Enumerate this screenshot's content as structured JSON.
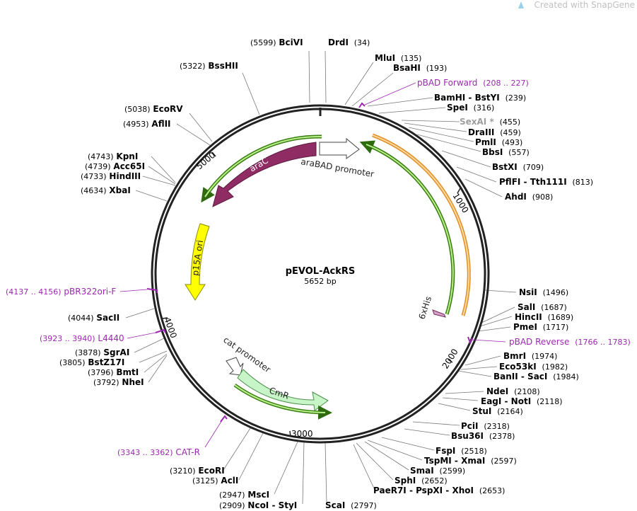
{
  "watermark": "Created with SnapGene",
  "plasmid": {
    "name": "pEVOL-AckRS",
    "length": "5652 bp"
  },
  "ticks": [
    "1000",
    "2000",
    "3000",
    "4000",
    "5000"
  ],
  "features": {
    "araC": "araC",
    "araBAD": "araBAD promoter",
    "p15A": "p15A ori",
    "cat": "cat promoter",
    "cmr": "CmR",
    "his": "6xHis"
  },
  "sites": [
    {
      "pos": "(5599)",
      "name": "BciVI"
    },
    {
      "pos": "(34)",
      "name": "DrdI"
    },
    {
      "pos": "(135)",
      "name": "MluI"
    },
    {
      "pos": "(193)",
      "name": "BsaHI"
    },
    {
      "pos": "(5322)",
      "name": "BssHII"
    },
    {
      "pos": "(239)",
      "name": "BamHI - BstYI"
    },
    {
      "pos": "(316)",
      "name": "SpeI"
    },
    {
      "pos": "(455)",
      "name": "SexAI *"
    },
    {
      "pos": "(459)",
      "name": "DraIII"
    },
    {
      "pos": "(493)",
      "name": "PmlI"
    },
    {
      "pos": "(557)",
      "name": "BbsI"
    },
    {
      "pos": "(5038)",
      "name": "EcoRV"
    },
    {
      "pos": "(4953)",
      "name": "AflII"
    },
    {
      "pos": "(709)",
      "name": "BstXI"
    },
    {
      "pos": "(4743)",
      "name": "KpnI"
    },
    {
      "pos": "(4739)",
      "name": "Acc65I"
    },
    {
      "pos": "(4733)",
      "name": "HindIII"
    },
    {
      "pos": "(813)",
      "name": "PflFI - Tth111I"
    },
    {
      "pos": "(4634)",
      "name": "XbaI"
    },
    {
      "pos": "(908)",
      "name": "AhdI"
    },
    {
      "pos": "(1496)",
      "name": "NsiI"
    },
    {
      "pos": "(4044)",
      "name": "SacII"
    },
    {
      "pos": "(1687)",
      "name": "SalI"
    },
    {
      "pos": "(1689)",
      "name": "HincII"
    },
    {
      "pos": "(1717)",
      "name": "PmeI"
    },
    {
      "pos": "(3878)",
      "name": "SgrAI"
    },
    {
      "pos": "(3805)",
      "name": "BstZ17I"
    },
    {
      "pos": "(3796)",
      "name": "BmtI"
    },
    {
      "pos": "(3792)",
      "name": "NheI"
    },
    {
      "pos": "(1974)",
      "name": "BmrI"
    },
    {
      "pos": "(1982)",
      "name": "Eco53kI"
    },
    {
      "pos": "(1984)",
      "name": "BanII - SacI"
    },
    {
      "pos": "(2108)",
      "name": "NdeI"
    },
    {
      "pos": "(2118)",
      "name": "EagI - NotI"
    },
    {
      "pos": "(2164)",
      "name": "StuI"
    },
    {
      "pos": "(2318)",
      "name": "PciI"
    },
    {
      "pos": "(2378)",
      "name": "Bsu36I"
    },
    {
      "pos": "(2518)",
      "name": "FspI"
    },
    {
      "pos": "(2597)",
      "name": "TspMI - XmaI"
    },
    {
      "pos": "(2599)",
      "name": "SmaI"
    },
    {
      "pos": "(2652)",
      "name": "SphI"
    },
    {
      "pos": "(2653)",
      "name": "PaeR7I - PspXI - XhoI"
    },
    {
      "pos": "(3210)",
      "name": "EcoRI"
    },
    {
      "pos": "(3125)",
      "name": "AclI"
    },
    {
      "pos": "(2947)",
      "name": "MscI"
    },
    {
      "pos": "(2909)",
      "name": "NcoI - StyI"
    },
    {
      "pos": "(2797)",
      "name": "ScaI"
    }
  ],
  "primers": [
    {
      "name": "pBAD Forward",
      "range": "(208 .. 227)"
    },
    {
      "name": "pBR322ori-F",
      "range": "(4137 .. 4156)"
    },
    {
      "name": "L4440",
      "range": "(3923 .. 3940)"
    },
    {
      "name": "pBAD Reverse",
      "range": "(1766 .. 1783)"
    },
    {
      "name": "CAT-R",
      "range": "(3343 .. 3362)"
    }
  ],
  "colors": {
    "backbone": "#222222",
    "araC": "#8e2c63",
    "p15A": "#ffff00",
    "cmr": "#c8f5c8",
    "green_track": "#4caf1c",
    "orange_track": "#f0a030",
    "primer": "#9c27b0"
  }
}
